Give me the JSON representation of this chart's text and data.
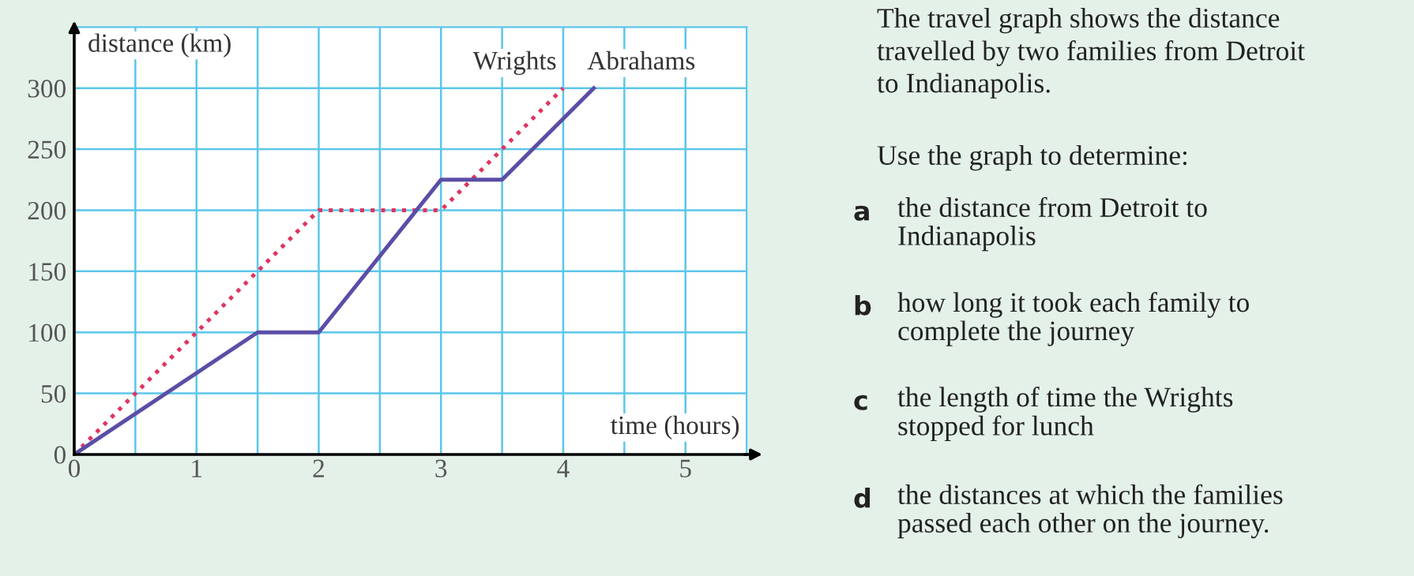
{
  "chart_data": {
    "type": "line",
    "xlabel": "time (hours)",
    "ylabel": "distance (km)",
    "xlim": [
      0,
      5.5
    ],
    "ylim": [
      0,
      350
    ],
    "xticks": [
      0,
      {
        "value": 0.5,
        "label": null
      },
      1,
      {
        "value": 1.5,
        "label": null
      },
      2,
      {
        "value": 2.5,
        "label": null
      },
      3,
      {
        "value": 3.5,
        "label": null
      },
      4,
      {
        "value": 4.5,
        "label": null
      },
      5
    ],
    "yticks": [
      0,
      50,
      100,
      150,
      200,
      250,
      300
    ],
    "grid": true,
    "legend": false,
    "marker": "none",
    "series": [
      {
        "name": "Wrights",
        "color": "#e03460",
        "line_style": "dotted",
        "x": [
          0,
          2,
          3,
          4
        ],
        "values": [
          0,
          200,
          200,
          300
        ]
      },
      {
        "name": "Abrahams",
        "color": "#5a4ea6",
        "line_style": "solid",
        "x": [
          0,
          1.5,
          2,
          3,
          3.5,
          4.25
        ],
        "values": [
          0,
          100,
          100,
          225,
          225,
          300
        ]
      }
    ],
    "annotations": [
      "The travel graph shows the distance\ntravelled by two families from Detroit\nto Indianapolis.",
      "Use the graph to determine:",
      "a",
      "the distance from Detroit to\nIndianapolis",
      "b",
      "how long it took each family to\ncomplete the journey",
      "c",
      "the length of time the Wrights\nstopped for lunch",
      "d",
      "the distances at which the families\npassed each other on the journey."
    ]
  }
}
